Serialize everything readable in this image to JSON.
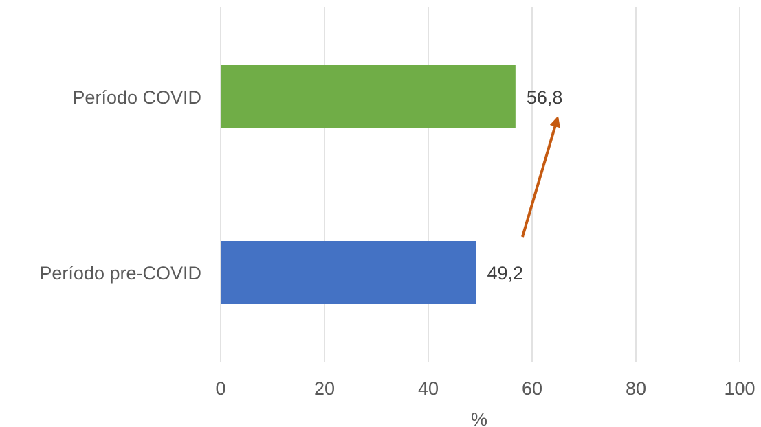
{
  "chart_data": {
    "type": "bar",
    "orientation": "horizontal",
    "categories": [
      "Período COVID",
      "Período pre-COVID"
    ],
    "values": [
      56.8,
      49.2
    ],
    "value_labels": [
      "56,8",
      "49,2"
    ],
    "bar_colors": [
      "#70ad47",
      "#4472c4"
    ],
    "title": "",
    "xlabel": "%",
    "ylabel": "",
    "xlim": [
      0,
      100
    ],
    "x_ticks": [
      0,
      20,
      40,
      60,
      80,
      100
    ],
    "x_tick_labels": [
      "0",
      "20",
      "40",
      "60",
      "80",
      "100"
    ],
    "grid": "vertical",
    "legend": "none",
    "annotation": {
      "type": "arrow",
      "from": "Período pre-COVID",
      "to": "Período COVID",
      "color": "#c55a11"
    }
  }
}
